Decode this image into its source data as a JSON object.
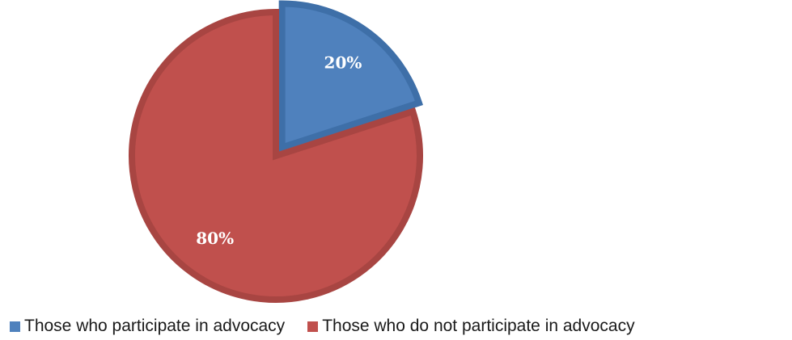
{
  "chart_data": {
    "type": "pie",
    "categories": [
      "Those who participate in advocacy",
      "Those who do not participate in advocacy"
    ],
    "values": [
      20,
      80
    ],
    "data_labels": [
      "20%",
      "80%"
    ],
    "colors": [
      "#4f81bd",
      "#c0504d"
    ],
    "border_colors": [
      "#3e6fa8",
      "#a84542"
    ],
    "start_angle_deg": 0,
    "direction": "clockwise",
    "exploded_slice": "Those who participate in advocacy",
    "legend_position": "bottom",
    "title": ""
  },
  "legend": {
    "items": [
      {
        "label": "Those who participate in advocacy",
        "color": "#4f81bd"
      },
      {
        "label": "Those who do not participate in advocacy",
        "color": "#c0504d"
      }
    ]
  }
}
